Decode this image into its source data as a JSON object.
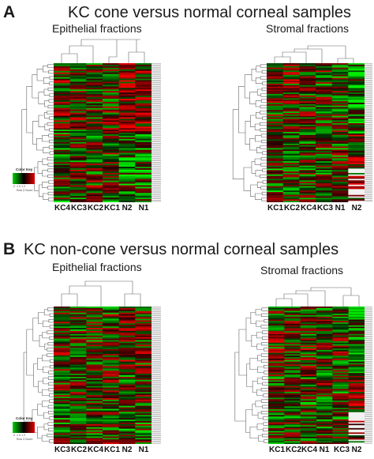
{
  "panel_a": {
    "letter": "A",
    "title": "KC cone versus normal corneal samples",
    "left": {
      "subtitle": "Epithelial fractions",
      "columns": [
        "KC4",
        "KC3",
        "KC2",
        "KC1",
        "N2",
        "N1"
      ]
    },
    "right": {
      "subtitle": "Stromal fractions",
      "columns": [
        "KC1",
        "KC2",
        "KC4",
        "KC3",
        "N1",
        "N2"
      ]
    }
  },
  "panel_b": {
    "letter": "B",
    "title": "KC non-cone versus normal corneal samples",
    "left": {
      "subtitle": "Epithelial fractions",
      "columns": [
        "KC3",
        "KC2",
        "KC4",
        "KC1",
        "N2",
        "N1"
      ]
    },
    "right": {
      "subtitle": "Stromal fractions",
      "columns": [
        "KC1",
        "KC2",
        "KC4",
        "N1",
        "KC3",
        "N2"
      ]
    }
  },
  "color_key": {
    "title": "Color Key",
    "ticks": "-2 -1 0 1 2",
    "subtitle": "Row Z-Score",
    "low_color": "#00d000",
    "mid_color": "#000000",
    "high_color": "#e00000"
  }
}
